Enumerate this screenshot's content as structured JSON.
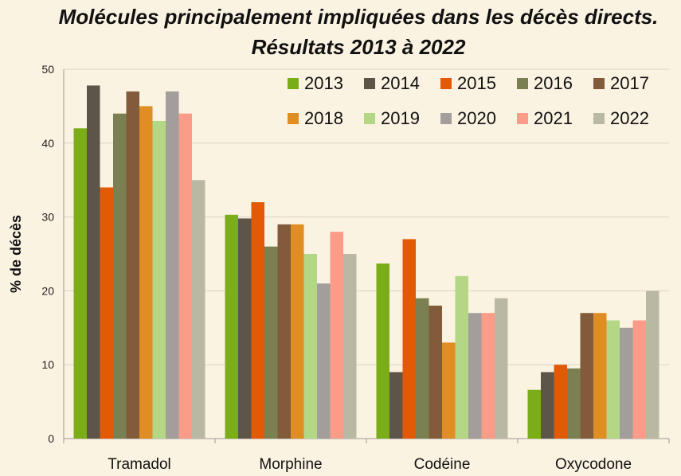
{
  "title": "Molécules principalement impliquées dans les décès directs. Résultats 2013 à 2022",
  "chart_data": {
    "type": "bar",
    "ylabel": "% de décès",
    "ylim": [
      0,
      50
    ],
    "yticks": [
      0,
      10,
      20,
      30,
      40,
      50
    ],
    "grid": true,
    "legend": "top-right",
    "categories": [
      "Tramadol",
      "Morphine",
      "Codéine",
      "Oxycodone"
    ],
    "series": [
      {
        "name": "2013",
        "color": "#7aad18",
        "values": [
          42,
          30.3,
          23.7,
          6.6
        ]
      },
      {
        "name": "2014",
        "color": "#5e554a",
        "values": [
          47.8,
          29.8,
          9,
          9
        ]
      },
      {
        "name": "2015",
        "color": "#e35a06",
        "values": [
          34,
          32,
          27,
          10
        ]
      },
      {
        "name": "2016",
        "color": "#7b8052",
        "values": [
          44,
          26,
          19,
          9.5
        ]
      },
      {
        "name": "2017",
        "color": "#815b3a",
        "values": [
          47,
          29,
          18,
          17
        ]
      },
      {
        "name": "2018",
        "color": "#e08e24",
        "values": [
          45,
          29,
          13,
          17
        ]
      },
      {
        "name": "2019",
        "color": "#b4d786",
        "values": [
          43,
          25,
          22,
          16
        ]
      },
      {
        "name": "2020",
        "color": "#a39d9b",
        "values": [
          47,
          21,
          17,
          15
        ]
      },
      {
        "name": "2021",
        "color": "#fb9c89",
        "values": [
          44,
          28,
          17,
          16
        ]
      },
      {
        "name": "2022",
        "color": "#b9b8a2",
        "values": [
          35,
          25,
          19,
          20
        ]
      }
    ]
  }
}
